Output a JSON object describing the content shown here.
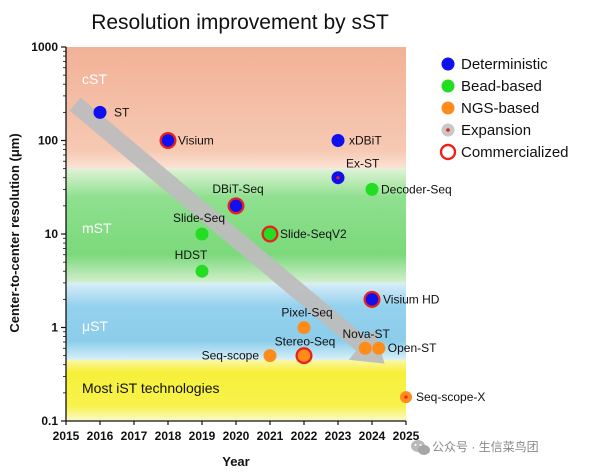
{
  "chart_data": {
    "type": "scatter",
    "title": "Resolution improvement by sST",
    "xlabel": "Year",
    "ylabel": "Center-to-center resolution (μm)",
    "xlim": [
      2015,
      2025
    ],
    "ylim": [
      0.1,
      1000
    ],
    "yscale": "log",
    "x_ticks": [
      "2015",
      "2016",
      "2017",
      "2018",
      "2019",
      "2020",
      "2021",
      "2022",
      "2023",
      "2024",
      "2025"
    ],
    "y_ticks": [
      "0.1",
      "1",
      "10",
      "100",
      "1000"
    ],
    "regions": [
      {
        "label": "cST",
        "from": 50,
        "to": 1000,
        "color": "#f2b8a0"
      },
      {
        "label": "mST",
        "from": 3,
        "to": 50,
        "color": "#7fd97f"
      },
      {
        "label": "μST",
        "from": 0.45,
        "to": 3,
        "color": "#8ecfea"
      },
      {
        "label": "Most iST technologies",
        "from": 0.1,
        "to": 0.45,
        "color": "#f7f24a"
      }
    ],
    "legend": [
      {
        "label": "Deterministic",
        "marker": "blue-dot"
      },
      {
        "label": "Bead-based",
        "marker": "green-dot"
      },
      {
        "label": "NGS-based",
        "marker": "orange-dot"
      },
      {
        "label": "Expansion",
        "marker": "gray-red-dot"
      },
      {
        "label": "Commercialized",
        "marker": "red-ring"
      }
    ],
    "legend_position": "top-right",
    "colors": {
      "deterministic": "#1010ee",
      "bead": "#22dd22",
      "ngs": "#ff8c1a",
      "expansion": "#c8c8c8",
      "commercial": "#e8221b",
      "arrow": "#bdbdbd"
    },
    "points": [
      {
        "name": "ST",
        "x": 2016,
        "y": 200,
        "type": "deterministic",
        "commercial": false,
        "expansion": false
      },
      {
        "name": "Visium",
        "x": 2018,
        "y": 100,
        "type": "deterministic",
        "commercial": true,
        "expansion": false
      },
      {
        "name": "DBiT-Seq",
        "x": 2020,
        "y": 20,
        "type": "deterministic",
        "commercial": true,
        "expansion": false
      },
      {
        "name": "Slide-Seq",
        "x": 2019,
        "y": 10,
        "type": "bead",
        "commercial": false,
        "expansion": false
      },
      {
        "name": "HDST",
        "x": 2019,
        "y": 4,
        "type": "bead",
        "commercial": false,
        "expansion": false
      },
      {
        "name": "Slide-SeqV2",
        "x": 2021,
        "y": 10,
        "type": "bead",
        "commercial": true,
        "expansion": false
      },
      {
        "name": "xDBiT",
        "x": 2023,
        "y": 100,
        "type": "deterministic",
        "commercial": false,
        "expansion": false
      },
      {
        "name": "Ex-ST",
        "x": 2023,
        "y": 40,
        "type": "deterministic",
        "commercial": false,
        "expansion": true
      },
      {
        "name": "Decoder-Seq",
        "x": 2024,
        "y": 30,
        "type": "bead",
        "commercial": false,
        "expansion": false
      },
      {
        "name": "Visium HD",
        "x": 2024,
        "y": 2,
        "type": "deterministic",
        "commercial": true,
        "expansion": false
      },
      {
        "name": "Pixel-Seq",
        "x": 2022,
        "y": 1,
        "type": "ngs",
        "commercial": false,
        "expansion": false
      },
      {
        "name": "Stereo-Seq",
        "x": 2022,
        "y": 0.5,
        "type": "ngs",
        "commercial": true,
        "expansion": false
      },
      {
        "name": "Seq-scope",
        "x": 2021,
        "y": 0.5,
        "type": "ngs",
        "commercial": false,
        "expansion": false
      },
      {
        "name": "Nova-ST",
        "x": 2023.8,
        "y": 0.6,
        "type": "ngs",
        "commercial": false,
        "expansion": false
      },
      {
        "name": "Open-ST",
        "x": 2024.2,
        "y": 0.6,
        "type": "ngs",
        "commercial": false,
        "expansion": false
      },
      {
        "name": "Seq-scope-X",
        "x": 2025,
        "y": 0.18,
        "type": "ngs",
        "commercial": false,
        "expansion": true
      }
    ]
  },
  "watermark": {
    "text": "公众号 · 生信菜鸟团",
    "icon": "wechat-icon"
  }
}
